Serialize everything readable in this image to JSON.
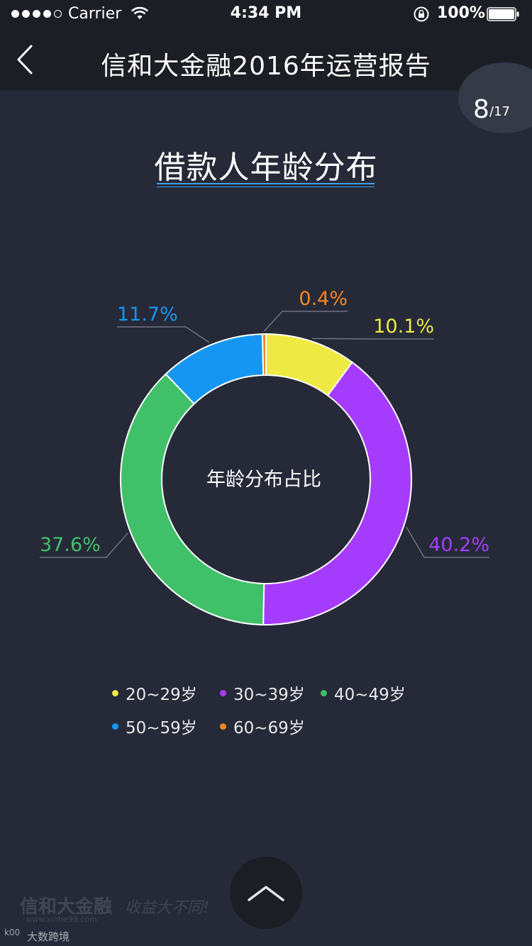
{
  "status_bar": {
    "carrier": "Carrier",
    "time": "4:34 PM",
    "battery": "100%"
  },
  "nav": {
    "title": "信和大金融2016年运营报告",
    "back_icon": "chevron-left-icon"
  },
  "pagination": {
    "current": "8",
    "total": "/17"
  },
  "section_title": "借款人年龄分布",
  "chart_data": {
    "type": "pie",
    "donut": true,
    "center_label": "年龄分布占比",
    "categories": [
      "20~29岁",
      "30~39岁",
      "40~49岁",
      "50~59岁",
      "60~69岁"
    ],
    "values": [
      10.1,
      40.2,
      37.6,
      11.7,
      0.4
    ],
    "labels": [
      "10.1%",
      "40.2%",
      "37.6%",
      "11.7%",
      "0.4%"
    ],
    "colors": [
      "#eeea43",
      "#a53cfd",
      "#41c06a",
      "#1496f2",
      "#f6871e"
    ],
    "legend_placement": "bottom"
  },
  "scroll_up_icon": "chevron-up-icon",
  "watermark": {
    "brand": "信和大金融",
    "url": "www.xinhe99.com",
    "slogan": "收益大不同!"
  },
  "credit": {
    "logo": "k00",
    "text": "大数跨境"
  }
}
